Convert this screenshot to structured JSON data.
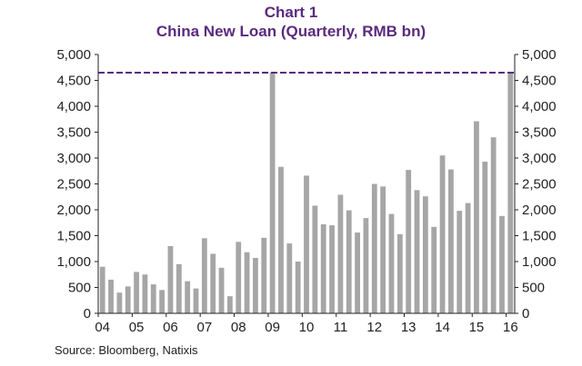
{
  "title": "Chart 1",
  "subtitle": "China New Loan (Quarterly, RMB bn)",
  "source": "Source: Bloomberg, Natixis",
  "colors": {
    "bar": "#a6a6a6",
    "title": "#5b2a7e",
    "reference_line": "#5b2a7e",
    "axis": "#222222"
  },
  "chart_data": {
    "type": "bar",
    "title": "China New Loan (Quarterly, RMB bn)",
    "xlabel": "",
    "ylabel": "",
    "ylim": [
      0,
      5000
    ],
    "yticks": [
      "0",
      "500",
      "1,000",
      "1,500",
      "2,000",
      "2,500",
      "3,000",
      "3,500",
      "4,000",
      "4,500",
      "5,000"
    ],
    "ytick_values": [
      0,
      500,
      1000,
      1500,
      2000,
      2500,
      3000,
      3500,
      4000,
      4500,
      5000
    ],
    "secondary_y_axis": true,
    "grid": false,
    "xtick_labels": [
      "04",
      "05",
      "06",
      "07",
      "08",
      "09",
      "10",
      "11",
      "12",
      "13",
      "14",
      "15",
      "16"
    ],
    "reference_line": {
      "y": 4650,
      "style": "dashed"
    },
    "values": [
      900,
      650,
      400,
      520,
      800,
      750,
      560,
      450,
      1300,
      950,
      620,
      480,
      1450,
      1150,
      880,
      330,
      1380,
      1180,
      1070,
      1460,
      4650,
      2830,
      1350,
      1000,
      2660,
      2080,
      1720,
      1700,
      2290,
      1990,
      1560,
      1840,
      2500,
      2450,
      1920,
      1530,
      2770,
      2380,
      2260,
      1670,
      3050,
      2780,
      1980,
      2130,
      3710,
      2930,
      3400,
      1880,
      4650
    ]
  }
}
